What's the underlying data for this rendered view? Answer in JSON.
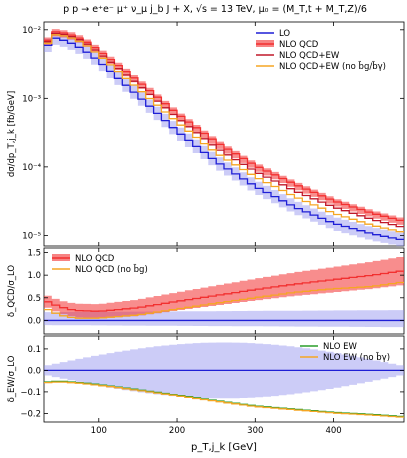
{
  "title": "p p → e⁺e⁻ μ⁺ ν_μ j_b J + X, √s = 13 TeV, μ₀ = (M_T,t + M_T,Z)/6",
  "chart_data": [
    {
      "type": "line",
      "panel": "main",
      "ylabel": "dσ/dp_T,j_k [fb/GeV]",
      "yscale": "log",
      "ylim": [
        7e-06,
        0.013
      ],
      "xlim": [
        30,
        490
      ],
      "yticks": [
        {
          "v": 1e-05,
          "label": "10⁻⁵"
        },
        {
          "v": 0.0001,
          "label": "10⁻⁴"
        },
        {
          "v": 0.001,
          "label": "10⁻³"
        },
        {
          "v": 0.01,
          "label": "10⁻²"
        }
      ],
      "legend_position": "top-right",
      "series": [
        {
          "name": "LO",
          "color": "#1f1fd6",
          "y_at": [
            [
              30,
              0.0045
            ],
            [
              40,
              0.0078
            ],
            [
              60,
              0.0068
            ],
            [
              80,
              0.0052
            ],
            [
              100,
              0.0035
            ],
            [
              150,
              0.0011
            ],
            [
              200,
              0.00033
            ],
            [
              250,
              0.00012
            ],
            [
              300,
              5.2e-05
            ],
            [
              350,
              2.6e-05
            ],
            [
              400,
              1.5e-05
            ],
            [
              450,
              1.05e-05
            ],
            [
              490,
              8.5e-06
            ]
          ]
        },
        {
          "name": "NLO QCD",
          "color": "#f23030",
          "band": true,
          "y_at": [
            [
              30,
              0.0052
            ],
            [
              40,
              0.0095
            ],
            [
              60,
              0.0088
            ],
            [
              80,
              0.0072
            ],
            [
              100,
              0.005
            ],
            [
              150,
              0.0018
            ],
            [
              200,
              0.0006
            ],
            [
              250,
              0.00023
            ],
            [
              300,
              0.000105
            ],
            [
              350,
              5.6e-05
            ],
            [
              400,
              3.2e-05
            ],
            [
              450,
              2.1e-05
            ],
            [
              490,
              1.6e-05
            ]
          ]
        },
        {
          "name": "NLO QCD+EW",
          "color": "#c0182a",
          "y_at": [
            [
              30,
              0.005
            ],
            [
              40,
              0.009
            ],
            [
              60,
              0.0084
            ],
            [
              80,
              0.0068
            ],
            [
              100,
              0.0046
            ],
            [
              150,
              0.0016
            ],
            [
              200,
              0.00052
            ],
            [
              250,
              0.00019
            ],
            [
              300,
              8.6e-05
            ],
            [
              350,
              4.5e-05
            ],
            [
              400,
              2.6e-05
            ],
            [
              450,
              1.7e-05
            ],
            [
              490,
              1.3e-05
            ]
          ]
        },
        {
          "name": "NLO QCD+EW (no b̄g/b̄γ)",
          "color": "#f5a623",
          "y_at": [
            [
              30,
              0.0047
            ],
            [
              40,
              0.0086
            ],
            [
              60,
              0.008
            ],
            [
              80,
              0.0064
            ],
            [
              100,
              0.0043
            ],
            [
              150,
              0.0014
            ],
            [
              200,
              0.00045
            ],
            [
              250,
              0.00016
            ],
            [
              300,
              7.2e-05
            ],
            [
              350,
              3.7e-05
            ],
            [
              400,
              2.1e-05
            ],
            [
              450,
              1.4e-05
            ],
            [
              490,
              1.1e-05
            ]
          ]
        }
      ]
    },
    {
      "type": "line",
      "panel": "ratio-qcd",
      "ylabel": "δ_QCD/σ_LO",
      "ylim": [
        -0.3,
        1.6
      ],
      "yticks": [
        {
          "v": 0.0,
          "label": "0.0"
        },
        {
          "v": 0.5,
          "label": "0.5"
        },
        {
          "v": 1.0,
          "label": "1.0"
        },
        {
          "v": 1.5,
          "label": "1.5"
        }
      ],
      "legend_position": "top-left",
      "series": [
        {
          "name": "NLO QCD",
          "color": "#f23030",
          "band": true,
          "y_at": [
            [
              30,
              0.45
            ],
            [
              50,
              0.3
            ],
            [
              70,
              0.22
            ],
            [
              100,
              0.2
            ],
            [
              150,
              0.28
            ],
            [
              200,
              0.42
            ],
            [
              250,
              0.55
            ],
            [
              300,
              0.68
            ],
            [
              350,
              0.8
            ],
            [
              400,
              0.9
            ],
            [
              450,
              1.0
            ],
            [
              490,
              1.1
            ]
          ]
        },
        {
          "name": "NLO QCD (no b̄g)",
          "color": "#f5a623",
          "y_at": [
            [
              30,
              0.28
            ],
            [
              50,
              0.12
            ],
            [
              70,
              0.05
            ],
            [
              100,
              0.05
            ],
            [
              150,
              0.12
            ],
            [
              200,
              0.25
            ],
            [
              250,
              0.38
            ],
            [
              300,
              0.5
            ],
            [
              350,
              0.62
            ],
            [
              400,
              0.7
            ],
            [
              450,
              0.75
            ],
            [
              490,
              0.85
            ]
          ]
        }
      ]
    },
    {
      "type": "line",
      "panel": "ratio-ew",
      "xlabel": "p_T,j_k [GeV]",
      "ylabel": "δ_EW/σ_LO",
      "ylim": [
        -0.24,
        0.16
      ],
      "xticks": [
        100,
        200,
        300,
        400
      ],
      "yticks": [
        {
          "v": -0.2,
          "label": "−0.2"
        },
        {
          "v": -0.1,
          "label": "−0.1"
        },
        {
          "v": 0.0,
          "label": "0.0"
        },
        {
          "v": 0.1,
          "label": "0.1"
        }
      ],
      "legend_position": "top-right",
      "series": [
        {
          "name": "NLO EW",
          "color": "#2a9d2a",
          "y_at": [
            [
              30,
              -0.055
            ],
            [
              50,
              -0.05
            ],
            [
              80,
              -0.058
            ],
            [
              120,
              -0.075
            ],
            [
              160,
              -0.095
            ],
            [
              200,
              -0.115
            ],
            [
              250,
              -0.14
            ],
            [
              300,
              -0.165
            ],
            [
              350,
              -0.18
            ],
            [
              400,
              -0.195
            ],
            [
              450,
              -0.205
            ],
            [
              490,
              -0.215
            ]
          ]
        },
        {
          "name": "NLO EW (no b̄γ)",
          "color": "#f5a623",
          "y_at": [
            [
              30,
              -0.058
            ],
            [
              50,
              -0.053
            ],
            [
              80,
              -0.061
            ],
            [
              120,
              -0.078
            ],
            [
              160,
              -0.098
            ],
            [
              200,
              -0.118
            ],
            [
              250,
              -0.143
            ],
            [
              300,
              -0.168
            ],
            [
              350,
              -0.183
            ],
            [
              400,
              -0.198
            ],
            [
              450,
              -0.208
            ],
            [
              490,
              -0.218
            ]
          ]
        }
      ]
    }
  ]
}
